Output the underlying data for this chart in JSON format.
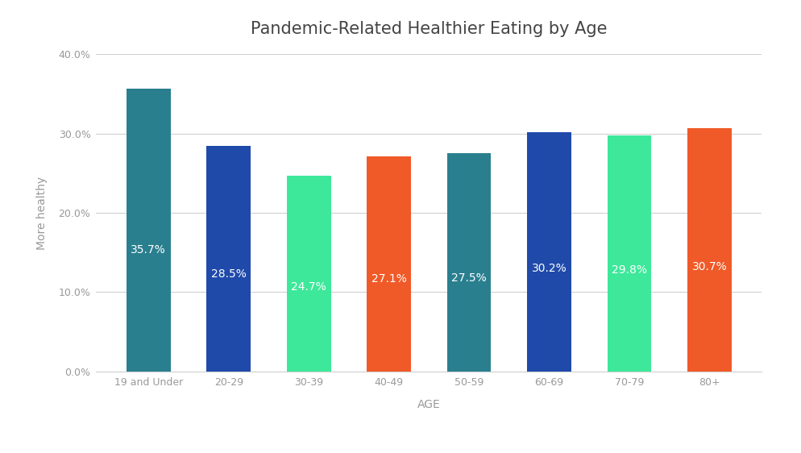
{
  "categories": [
    "19 and Under",
    "20-29",
    "30-39",
    "40-49",
    "50-59",
    "60-69",
    "70-79",
    "80+"
  ],
  "values": [
    35.7,
    28.5,
    24.7,
    27.1,
    27.5,
    30.2,
    29.8,
    30.7
  ],
  "bar_colors": [
    "#2a7f8f",
    "#1f4aaa",
    "#3de89a",
    "#f05a28",
    "#2a7f8f",
    "#1f4aaa",
    "#3de89a",
    "#f05a28"
  ],
  "title": "Pandemic-Related Healthier Eating by Age",
  "xlabel": "AGE",
  "ylabel": "More healthy",
  "ylim": [
    0,
    40
  ],
  "yticks": [
    0,
    10,
    20,
    30,
    40
  ],
  "ytick_labels": [
    "0.0%",
    "10.0%",
    "20.0%",
    "30.0%",
    "40.0%"
  ],
  "label_color": "#ffffff",
  "label_fontsize": 10,
  "title_fontsize": 15,
  "axis_label_fontsize": 10,
  "tick_label_fontsize": 9,
  "background_color": "#ffffff",
  "plot_bg_color": "#ffffff",
  "grid_color": "#d0d0d0",
  "tick_color": "#999999",
  "bar_width": 0.55
}
